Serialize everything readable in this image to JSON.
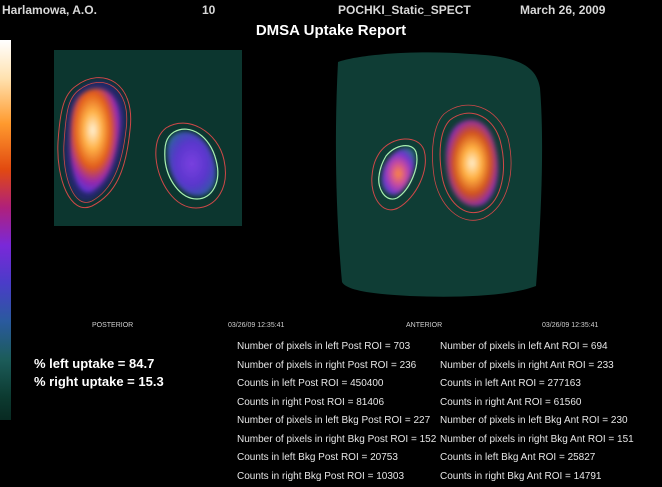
{
  "header": {
    "patient_name": "Harlamowa, A.O.",
    "series_number": "10",
    "study_name": "POCHKI_Static_SPECT",
    "study_date": "March 26, 2009"
  },
  "report_title": "DMSA Uptake Report",
  "images": {
    "posterior": {
      "label": "POSTERIOR",
      "timestamp": "03/26/09 12:35:41"
    },
    "anterior": {
      "label": "ANTERIOR",
      "timestamp": "03/26/09 12:35:41"
    }
  },
  "uptake": {
    "left": "% left uptake = 84.7",
    "right": "% right uptake = 15.3"
  },
  "stats": {
    "posterior": [
      "Number of pixels in left Post ROI = 703",
      "Number of pixels in right Post ROI = 236",
      "Counts in left Post ROI = 450400",
      "Counts in right Post ROI = 81406",
      "Number of pixels in left Bkg Post ROI = 227",
      "Number of pixels in right Bkg Post ROI = 152",
      "Counts in left Bkg Post ROI = 20753",
      "Counts in right Bkg Post ROI = 10303"
    ],
    "anterior": [
      "Number of pixels in left Ant ROI = 694",
      "Number of pixels in right Ant ROI = 233",
      "Counts in left Ant ROI = 277163",
      "Counts in right Ant ROI = 61560",
      "Number of pixels in left Bkg Ant ROI = 230",
      "Number of pixels in right Bkg Ant ROI = 151",
      "Counts in left Bkg Ant ROI = 25827",
      "Counts in right Bkg Ant ROI = 14791"
    ]
  },
  "colors": {
    "background": "#000000",
    "roi_outline": "#d04848",
    "roi_inner_outline": "#a8f0b0",
    "image_background": "#0f3d35"
  }
}
